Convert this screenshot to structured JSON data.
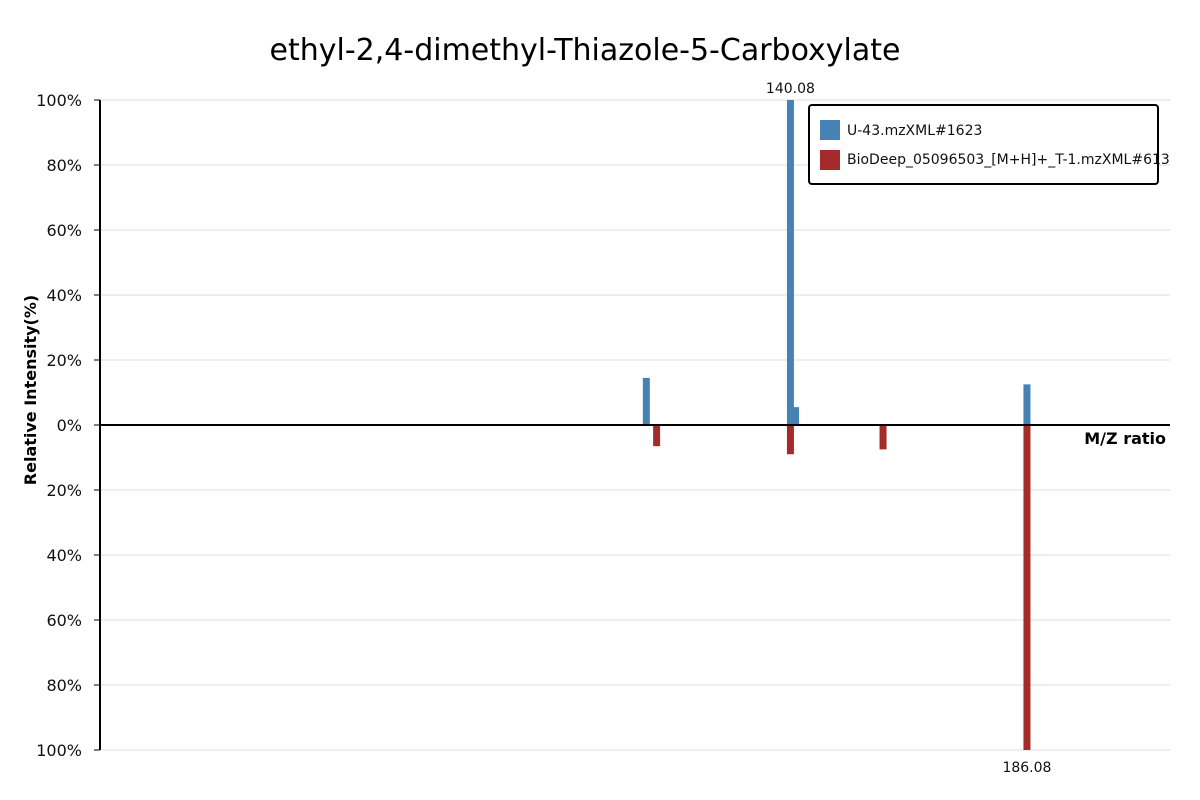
{
  "chart_data": {
    "type": "bar",
    "title": "ethyl-2,4-dimethyl-Thiazole-5-Carboxylate",
    "xlabel": "M/Z ratio",
    "ylabel": "Relative Intensity(%)",
    "ylim": [
      -100,
      100
    ],
    "yticks_top": [
      "100%",
      "80%",
      "60%",
      "40%",
      "20%",
      "0%"
    ],
    "yticks_bottom": [
      "20%",
      "40%",
      "60%",
      "80%",
      "100%"
    ],
    "grid": true,
    "legend_position": "top-right",
    "colors": {
      "query": "#4682b4",
      "reference": "#a52a2a"
    },
    "series": [
      {
        "name": "U-43.mzXML#1623",
        "direction": "up",
        "peaks": [
          {
            "mz": 112.05,
            "intensity": 14.5
          },
          {
            "mz": 140.08,
            "intensity": 100
          },
          {
            "mz": 141.08,
            "intensity": 5.5
          },
          {
            "mz": 186.08,
            "intensity": 12.5
          }
        ]
      },
      {
        "name": "BioDeep_05096503_[M+H]+_T-1.mzXML#613",
        "direction": "down",
        "peaks": [
          {
            "mz": 114.05,
            "intensity": 6.5
          },
          {
            "mz": 140.08,
            "intensity": 9
          },
          {
            "mz": 158.09,
            "intensity": 7.5
          },
          {
            "mz": 186.08,
            "intensity": 100
          }
        ]
      }
    ],
    "peak_labels": [
      {
        "text": "140.08",
        "mz": 140.08,
        "side": "top"
      },
      {
        "text": "186.08",
        "mz": 186.08,
        "side": "bottom"
      }
    ]
  }
}
